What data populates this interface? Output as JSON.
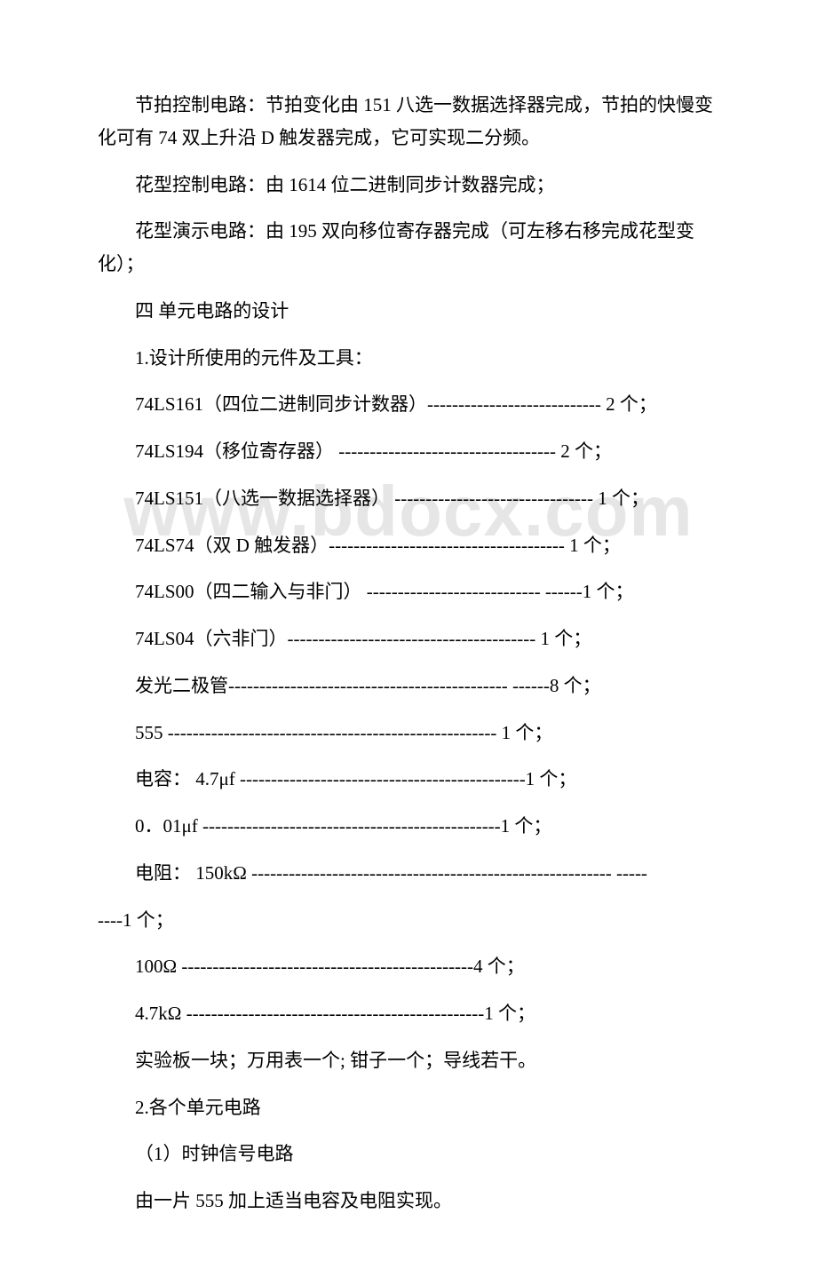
{
  "watermark": "www.bdocx.com",
  "paragraphs": {
    "p1": "节拍控制电路：节拍变化由 151 八选一数据选择器完成，节拍的快慢变化可有 74 双上升沿 D 触发器完成，它可实现二分频。",
    "p2": "花型控制电路：由 1614 位二进制同步计数器完成；",
    "p3": "花型演示电路：由 195 双向移位寄存器完成（可左移右移完成花型变化）；",
    "p4": "四 单元电路的设计",
    "p5": "1.设计所使用的元件及工具：",
    "p6": "74LS161（四位二进制同步计数器）---------------------------- 2 个；",
    "p7": "74LS194（移位寄存器） ----------------------------------- 2 个；",
    "p8": "74LS151（八选一数据选择器） -------------------------------- 1 个；",
    "p9": "74LS74（双 D 触发器）-------------------------------------- 1 个；",
    "p10": "74LS00（四二输入与非门） ---------------------------- ------1 个；",
    "p11": "74LS04（六非门）---------------------------------------- 1 个；",
    "p12": "发光二极管--------------------------------------------- ------8 个；",
    "p13": "555 ----------------------------------------------------- 1 个；",
    "p14": "电容： 4.7μf ----------------------------------------------1 个；",
    "p15": "0．01μf ------------------------------------------------1 个；",
    "p16a": "电阻： 150kΩ ---------------------------------------------------------- -----",
    "p16b": "----1 个；",
    "p17": "100Ω -----------------------------------------------4 个；",
    "p18": "4.7kΩ ------------------------------------------------1 个；",
    "p19": "实验板一块；万用表一个; 钳子一个；导线若干。",
    "p20": "2.各个单元电路",
    "p21": "（1）时钟信号电路",
    "p22": "由一片 555 加上适当电容及电阻实现。"
  }
}
